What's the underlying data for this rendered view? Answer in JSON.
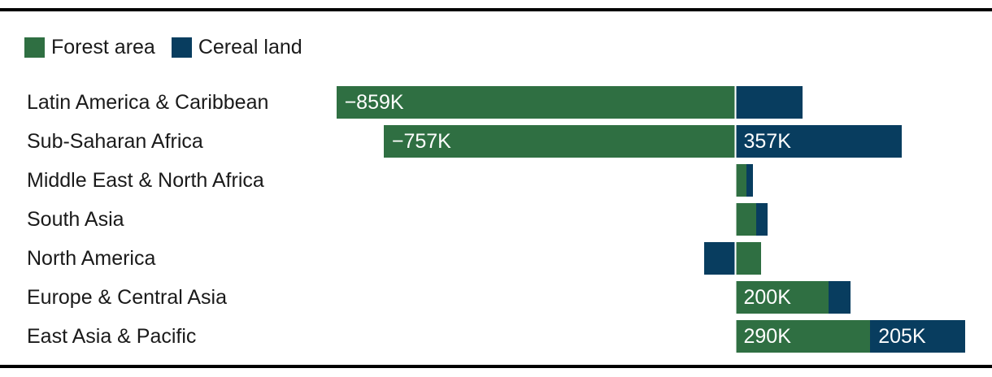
{
  "legend": [
    {
      "name": "forest",
      "label": "Forest area",
      "color": "#2f6f42"
    },
    {
      "name": "cereal",
      "label": "Cereal land",
      "color": "#083d5f"
    }
  ],
  "colors": {
    "forest_green": "#2f6f42",
    "cereal_navy": "#083d5f",
    "text": "#1a1a1a",
    "bar_value_text": "#ffffff",
    "rule_black": "#000000",
    "zero_axis_overlay": "rgba(255,255,255,0.55)"
  },
  "chart_data": {
    "type": "bar",
    "orientation": "horizontal-diverging-stacked",
    "title": "",
    "unit": "K (thousands)",
    "legend_position": "top-left",
    "grid": false,
    "axis_domain_K": [
      -859,
      495
    ],
    "unlabeled_values_estimated_from_bar_lengths": true,
    "series": [
      {
        "name": "Forest area",
        "color": "#2f6f42"
      },
      {
        "name": "Cereal land",
        "color": "#083d5f"
      }
    ],
    "categories": [
      "Latin America & Caribbean",
      "Sub-Saharan Africa",
      "Middle East & North Africa",
      "South Asia",
      "North America",
      "Europe & Central Asia",
      "East Asia & Pacific"
    ],
    "rows": [
      {
        "region": "Latin America & Caribbean",
        "forest": -859,
        "cereal": 145,
        "forest_label": "−859K",
        "cereal_label": ""
      },
      {
        "region": "Sub-Saharan Africa",
        "forest": -757,
        "cereal": 357,
        "forest_label": "−757K",
        "cereal_label": "357K"
      },
      {
        "region": "Middle East & North Africa",
        "forest": 23,
        "cereal": 14,
        "forest_label": "",
        "cereal_label": ""
      },
      {
        "region": "South Asia",
        "forest": 45,
        "cereal": 24,
        "forest_label": "",
        "cereal_label": ""
      },
      {
        "region": "North America",
        "forest": 55,
        "cereal": -67,
        "forest_label": "",
        "cereal_label": ""
      },
      {
        "region": "Europe & Central Asia",
        "forest": 200,
        "cereal": 48,
        "forest_label": "200K",
        "cereal_label": ""
      },
      {
        "region": "East Asia & Pacific",
        "forest": 290,
        "cereal": 205,
        "forest_label": "290K",
        "cereal_label": "205K"
      }
    ]
  }
}
